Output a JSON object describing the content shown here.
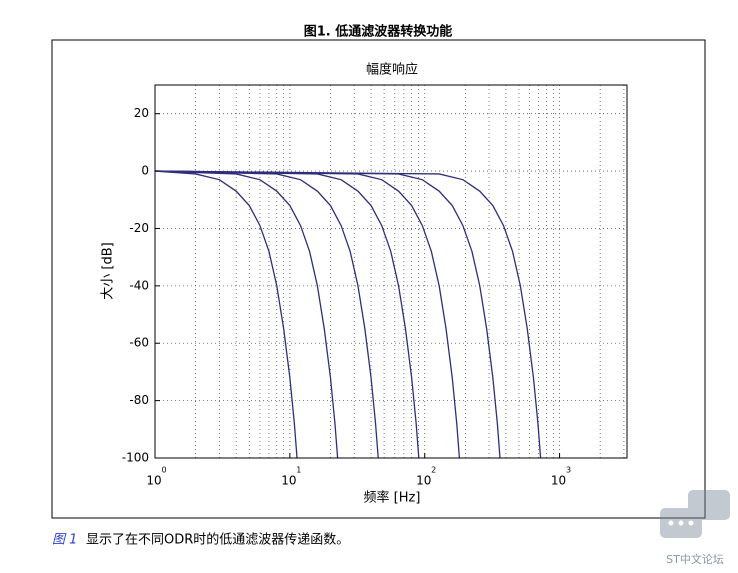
{
  "caption": "图1. 低通滤波器转换功能",
  "chart_data": {
    "type": "line",
    "title": "幅度响应",
    "x_label": "频率 [Hz]",
    "y_label": "大小 [dB]",
    "log_x": true,
    "grid": true,
    "xlim": [
      1,
      3162
    ],
    "ylim": [
      -100,
      30
    ],
    "xticks": [
      {
        "value": 1,
        "label": "10",
        "exponent": "0"
      },
      {
        "value": 10,
        "label": "10",
        "exponent": "1"
      },
      {
        "value": 100,
        "label": "10",
        "exponent": "2"
      },
      {
        "value": 1000,
        "label": "10",
        "exponent": "3"
      }
    ],
    "xminorticks": [
      2,
      3,
      4,
      5,
      6,
      7,
      8,
      9,
      20,
      30,
      40,
      50,
      60,
      70,
      80,
      90,
      200,
      300,
      400,
      500,
      600,
      700,
      800,
      900,
      2000,
      3000
    ],
    "yticks": [
      -100,
      -80,
      -60,
      -40,
      -20,
      0,
      20
    ],
    "series": [
      {
        "color": "#2e2e7a",
        "x": [
          1,
          2,
          3,
          4,
          5,
          6,
          7,
          8,
          9,
          10,
          10.8,
          11.3
        ],
        "values": [
          0,
          -1,
          -3,
          -7,
          -12,
          -19,
          -28,
          -40,
          -55,
          -72,
          -88,
          -100
        ]
      },
      {
        "color": "#2e2e7a",
        "x": [
          1,
          4,
          6,
          8,
          10,
          12,
          14,
          16,
          18,
          20,
          21.6,
          22.6
        ],
        "values": [
          0,
          -1,
          -3,
          -7,
          -12,
          -19,
          -28,
          -40,
          -55,
          -72,
          -88,
          -100
        ]
      },
      {
        "color": "#2e2e7a",
        "x": [
          1,
          8,
          12,
          16,
          20,
          24,
          28,
          32,
          36,
          40,
          43.2,
          45.2
        ],
        "values": [
          0,
          -1,
          -3,
          -7,
          -12,
          -19,
          -28,
          -40,
          -55,
          -72,
          -88,
          -100
        ]
      },
      {
        "color": "#2e2e7a",
        "x": [
          1,
          16,
          24,
          32,
          40,
          48,
          56,
          64,
          72,
          80,
          86.4,
          90.4
        ],
        "values": [
          0,
          -1,
          -3,
          -7,
          -12,
          -19,
          -28,
          -40,
          -55,
          -72,
          -88,
          -100
        ]
      },
      {
        "color": "#2e2e7a",
        "x": [
          1,
          32,
          48,
          64,
          80,
          96,
          112,
          128,
          144,
          160,
          172.8,
          180.8
        ],
        "values": [
          0,
          -1,
          -3,
          -7,
          -12,
          -19,
          -28,
          -40,
          -55,
          -72,
          -88,
          -100
        ]
      },
      {
        "color": "#2e2e7a",
        "x": [
          1,
          64,
          96,
          128,
          160,
          192,
          224,
          256,
          288,
          320,
          345.6,
          361.6
        ],
        "values": [
          0,
          -1,
          -3,
          -7,
          -12,
          -19,
          -28,
          -40,
          -55,
          -72,
          -88,
          -100
        ]
      },
      {
        "color": "#2e2e7a",
        "x": [
          1,
          128,
          192,
          256,
          320,
          384,
          448,
          512,
          576,
          640,
          691.2,
          723.2
        ],
        "values": [
          0,
          -1,
          -3,
          -7,
          -12,
          -19,
          -28,
          -40,
          -55,
          -72,
          -88,
          -100
        ]
      }
    ]
  },
  "body": {
    "ref": "图 1",
    "text": "显示了在不同ODR时的低通滤波器传递函数。"
  },
  "watermark": "ST中文论坛"
}
